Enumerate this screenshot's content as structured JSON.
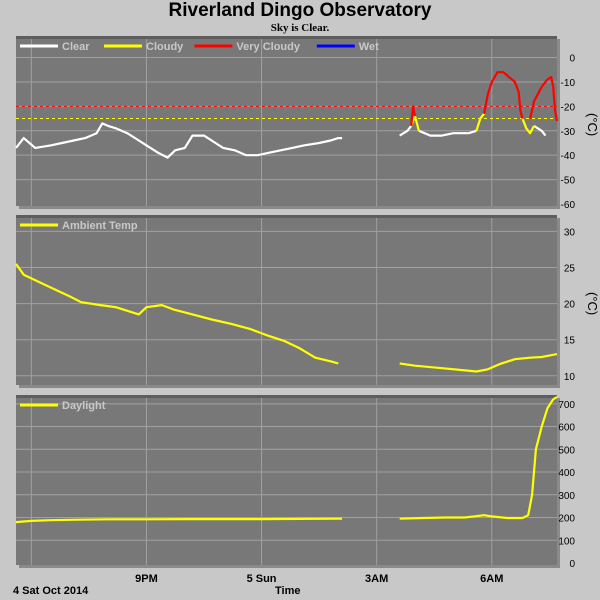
{
  "header": {
    "title": "Riverland Dingo Observatory",
    "subtitle": "Sky is Clear."
  },
  "footer": {
    "date": "4 Sat Oct 2014",
    "xlabel": "Time"
  },
  "colors": {
    "background": "#c8c8c8",
    "panel": "#787878",
    "grid": "#a0a0a0",
    "clear": "#ffffff",
    "cloudy": "#ffff00",
    "very_cloudy": "#ff0000",
    "wet": "#0000ff"
  },
  "chart_data": [
    {
      "type": "line",
      "ylim": [
        -60,
        8
      ],
      "yticks": [
        0,
        -10,
        -20,
        -30,
        -40,
        -50,
        -60
      ],
      "ylabel": "(°C)",
      "x_range_hours": [
        17.6,
        31.7
      ],
      "legend": [
        {
          "name": "Clear",
          "color": "#ffffff"
        },
        {
          "name": "Cloudy",
          "color": "#ffff00"
        },
        {
          "name": "Very Cloudy",
          "color": "#ff0000"
        },
        {
          "name": "Wet",
          "color": "#0000ff"
        }
      ],
      "threshold_lines": [
        {
          "value": -20,
          "color": "#ff0000"
        },
        {
          "value": -25,
          "color": "#ffff00"
        }
      ],
      "series": [
        {
          "name": "Clear",
          "color": "#ffffff",
          "segments": [
            [
              [
                17.6,
                -37
              ],
              [
                17.8,
                -33
              ],
              [
                18.1,
                -37
              ],
              [
                18.5,
                -36
              ],
              [
                18.8,
                -35
              ],
              [
                19.1,
                -34
              ],
              [
                19.4,
                -33
              ],
              [
                19.7,
                -31
              ],
              [
                19.85,
                -27
              ],
              [
                20.0,
                -28
              ],
              [
                20.2,
                -29
              ],
              [
                20.5,
                -31
              ],
              [
                20.8,
                -34
              ],
              [
                21.0,
                -36
              ],
              [
                21.3,
                -39
              ],
              [
                21.55,
                -41
              ],
              [
                21.75,
                -38
              ],
              [
                22.0,
                -37
              ],
              [
                22.2,
                -32
              ],
              [
                22.5,
                -32
              ],
              [
                22.8,
                -35
              ],
              [
                23.0,
                -37
              ],
              [
                23.3,
                -38
              ],
              [
                23.6,
                -40
              ],
              [
                23.9,
                -40
              ],
              [
                24.2,
                -39
              ],
              [
                24.5,
                -38
              ],
              [
                24.8,
                -37
              ],
              [
                25.1,
                -36
              ],
              [
                25.5,
                -35
              ],
              [
                25.8,
                -34
              ],
              [
                26.0,
                -33
              ],
              [
                26.1,
                -33
              ]
            ],
            [
              [
                27.6,
                -32
              ],
              [
                27.8,
                -30
              ],
              [
                27.9,
                -28
              ]
            ],
            [
              [
                28.1,
                -30
              ],
              [
                28.4,
                -32
              ],
              [
                28.7,
                -32
              ],
              [
                29.0,
                -31
              ],
              [
                29.2,
                -31
              ],
              [
                29.4,
                -31
              ],
              [
                29.6,
                -30
              ]
            ],
            [
              [
                31.1,
                -28
              ],
              [
                31.3,
                -30
              ],
              [
                31.4,
                -32
              ]
            ]
          ]
        },
        {
          "name": "Cloudy",
          "color": "#ffff00",
          "segments": [
            [
              [
                27.9,
                -28
              ],
              [
                28.0,
                -24
              ],
              [
                28.1,
                -30
              ]
            ],
            [
              [
                29.6,
                -30
              ],
              [
                29.7,
                -25
              ],
              [
                29.8,
                -23
              ]
            ],
            [
              [
                30.8,
                -25
              ],
              [
                30.9,
                -29
              ],
              [
                31.0,
                -31
              ],
              [
                31.1,
                -28
              ]
            ]
          ]
        },
        {
          "name": "Very Cloudy",
          "color": "#ff0000",
          "segments": [
            [
              [
                27.9,
                -28
              ],
              [
                27.95,
                -20
              ],
              [
                28.0,
                -24
              ]
            ],
            [
              [
                29.8,
                -23
              ],
              [
                29.9,
                -15
              ],
              [
                30.0,
                -10
              ],
              [
                30.15,
                -6
              ],
              [
                30.3,
                -6
              ],
              [
                30.45,
                -8
              ],
              [
                30.6,
                -10
              ],
              [
                30.7,
                -14
              ],
              [
                30.75,
                -22
              ],
              [
                30.8,
                -25
              ]
            ],
            [
              [
                31.0,
                -25
              ],
              [
                31.1,
                -18
              ],
              [
                31.3,
                -12
              ],
              [
                31.45,
                -9
              ],
              [
                31.55,
                -8
              ],
              [
                31.6,
                -12
              ],
              [
                31.65,
                -22
              ],
              [
                31.7,
                -26
              ]
            ]
          ]
        }
      ]
    },
    {
      "type": "line",
      "ylim": [
        9,
        32
      ],
      "yticks": [
        30,
        25,
        20,
        15,
        10
      ],
      "ylabel": "(°C)",
      "x_range_hours": [
        17.6,
        31.7
      ],
      "legend": [
        {
          "name": "Ambient Temp",
          "color": "#ffff00"
        }
      ],
      "series": [
        {
          "name": "Ambient Temp",
          "color": "#ffff00",
          "segments": [
            [
              [
                17.6,
                25.5
              ],
              [
                17.8,
                24
              ],
              [
                18.2,
                23
              ],
              [
                18.6,
                22
              ],
              [
                19.0,
                21
              ],
              [
                19.3,
                20.2
              ],
              [
                19.8,
                19.8
              ],
              [
                20.2,
                19.5
              ],
              [
                20.5,
                19.0
              ],
              [
                20.8,
                18.5
              ],
              [
                21.0,
                19.5
              ],
              [
                21.4,
                19.8
              ],
              [
                21.7,
                19.2
              ],
              [
                22.2,
                18.5
              ],
              [
                22.7,
                17.8
              ],
              [
                23.2,
                17.2
              ],
              [
                23.7,
                16.5
              ],
              [
                24.2,
                15.5
              ],
              [
                24.6,
                14.8
              ],
              [
                25.0,
                13.8
              ],
              [
                25.4,
                12.5
              ],
              [
                25.8,
                12
              ],
              [
                26.0,
                11.7
              ]
            ],
            [
              [
                27.6,
                11.7
              ],
              [
                28.0,
                11.4
              ],
              [
                28.6,
                11.1
              ],
              [
                29.2,
                10.8
              ],
              [
                29.6,
                10.6
              ],
              [
                29.9,
                10.9
              ],
              [
                30.2,
                11.6
              ],
              [
                30.6,
                12.3
              ],
              [
                31.0,
                12.5
              ],
              [
                31.3,
                12.6
              ],
              [
                31.5,
                12.8
              ],
              [
                31.7,
                13
              ]
            ]
          ]
        }
      ]
    },
    {
      "type": "line",
      "ylim": [
        0,
        730
      ],
      "yticks": [
        700,
        600,
        500,
        400,
        300,
        200,
        100,
        0
      ],
      "x_range_hours": [
        17.6,
        31.7
      ],
      "legend": [
        {
          "name": "Daylight",
          "color": "#ffff00"
        }
      ],
      "series": [
        {
          "name": "Daylight",
          "color": "#ffff00",
          "segments": [
            [
              [
                17.6,
                180
              ],
              [
                18.0,
                185
              ],
              [
                18.5,
                188
              ],
              [
                19.0,
                190
              ],
              [
                20.0,
                192
              ],
              [
                21.0,
                192
              ],
              [
                22.0,
                193
              ],
              [
                23.0,
                193
              ],
              [
                24.0,
                193
              ],
              [
                25.0,
                194
              ],
              [
                26.0,
                195
              ],
              [
                26.1,
                195
              ]
            ],
            [
              [
                27.6,
                195
              ],
              [
                28.2,
                198
              ],
              [
                28.8,
                200
              ],
              [
                29.3,
                200
              ],
              [
                29.8,
                210
              ],
              [
                30.0,
                205
              ],
              [
                30.4,
                198
              ],
              [
                30.8,
                198
              ],
              [
                30.95,
                210
              ],
              [
                31.05,
                300
              ],
              [
                31.15,
                500
              ],
              [
                31.3,
                600
              ],
              [
                31.45,
                680
              ],
              [
                31.6,
                720
              ],
              [
                31.7,
                730
              ]
            ]
          ]
        }
      ]
    }
  ],
  "x_axis": {
    "ticks": [
      {
        "hour": 21,
        "label": "9PM"
      },
      {
        "hour": 24,
        "label": "5 Sun"
      },
      {
        "hour": 27,
        "label": "3AM"
      },
      {
        "hour": 30,
        "label": "6AM"
      }
    ],
    "minor_hours": [
      18,
      21,
      24,
      27,
      30
    ]
  }
}
